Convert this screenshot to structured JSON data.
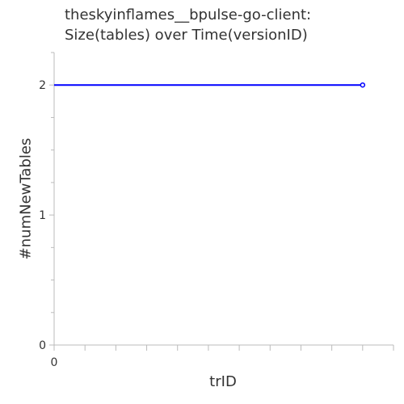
{
  "chart_data": {
    "type": "line",
    "title": [
      "theskyinflames__bpulse-go-client:",
      "Size(tables) over Time(versionID)"
    ],
    "xlabel": "trID",
    "ylabel": "#numNewTables",
    "x_tick_labels": [
      "0"
    ],
    "y_tick_labels": [
      "0",
      "1",
      "2"
    ],
    "xlim": [
      0,
      11
    ],
    "ylim": [
      0,
      2.25
    ],
    "series": [
      {
        "x": [
          0,
          10
        ],
        "y": [
          2,
          2
        ],
        "color": "#0000ff"
      }
    ],
    "grid": false
  }
}
